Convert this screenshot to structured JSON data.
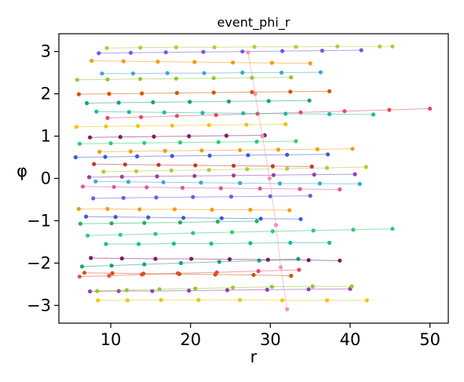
{
  "chart_data": {
    "type": "line",
    "title": "event_phi_r",
    "xlabel": "r",
    "ylabel": "φ",
    "xlim": [
      3.5,
      52.3
    ],
    "ylim": [
      -3.42,
      3.42
    ],
    "xticks": [
      10,
      20,
      30,
      40,
      50
    ],
    "yticks": [
      -3,
      -2,
      -1,
      0,
      1,
      2,
      3
    ],
    "xtick_labels": [
      "10",
      "20",
      "30",
      "40",
      "50"
    ],
    "ytick_labels": [
      "−3",
      "−2",
      "−1",
      "0",
      "1",
      "2",
      "3"
    ],
    "grid": false,
    "legend": "none",
    "palette": [
      "#e84a5f",
      "#f39c12",
      "#f1c40f",
      "#9ac43a",
      "#2ecc71",
      "#16a085",
      "#1abc9c",
      "#3ba7d8",
      "#3b5bdb",
      "#6c5ce7",
      "#8e44ad",
      "#e056a0",
      "#d35400",
      "#7f1d5f",
      "#27ae60",
      "#c0392b",
      "#b8c93b",
      "#f78fb3"
    ],
    "series": [
      {
        "color": "#f1c40f",
        "x": [
          8.4,
          12.1,
          16.3,
          21.0,
          26.2,
          31.5,
          37.1,
          42.1
        ],
        "y": [
          -2.88,
          -2.88,
          -2.87,
          -2.87,
          -2.87,
          -2.88,
          -2.88,
          -2.88
        ]
      },
      {
        "color": "#8e44ad",
        "x": [
          7.4,
          11.0,
          15.2,
          19.8,
          24.6,
          29.6,
          34.8,
          40.0
        ],
        "y": [
          -2.67,
          -2.66,
          -2.66,
          -2.65,
          -2.64,
          -2.63,
          -2.62,
          -2.61
        ]
      },
      {
        "color": "#9ac43a",
        "x": [
          8.3,
          12.0,
          16.1,
          20.6,
          25.3,
          30.2,
          35.3,
          40.2
        ],
        "y": [
          -2.66,
          -2.64,
          -2.62,
          -2.6,
          -2.58,
          -2.56,
          -2.55,
          -2.55
        ]
      },
      {
        "color": "#e84a5f",
        "x": [
          6.1,
          9.8,
          13.9,
          18.4,
          23.3,
          28.5,
          33.6
        ],
        "y": [
          -2.32,
          -2.3,
          -2.27,
          -2.24,
          -2.22,
          -2.19,
          -2.16
        ]
      },
      {
        "color": "#d35400",
        "x": [
          6.7,
          10.2,
          14.1,
          18.6,
          23.1,
          27.9,
          32.6
        ],
        "y": [
          -2.23,
          -2.24,
          -2.25,
          -2.26,
          -2.27,
          -2.28,
          -2.3
        ]
      },
      {
        "color": "#16a085",
        "x": [
          6.4,
          10.1,
          14.2,
          18.8,
          23.6,
          28.6,
          33.5
        ],
        "y": [
          -2.08,
          -2.06,
          -2.03,
          -2.0,
          -1.97,
          -1.94,
          -1.9
        ]
      },
      {
        "color": "#7f1d5f",
        "x": [
          7.5,
          11.4,
          15.6,
          20.1,
          24.9,
          29.7,
          34.8,
          38.7
        ],
        "y": [
          -1.88,
          -1.89,
          -1.9,
          -1.9,
          -1.91,
          -1.92,
          -1.93,
          -1.94
        ]
      },
      {
        "color": "#1abc9c",
        "x": [
          9.4,
          13.5,
          17.9,
          22.6,
          27.5,
          32.5,
          37.4
        ],
        "y": [
          -1.55,
          -1.55,
          -1.54,
          -1.54,
          -1.53,
          -1.52,
          -1.52
        ]
      },
      {
        "color": "#2ecc71",
        "x": [
          7.1,
          11.2,
          15.6,
          20.3,
          25.2,
          30.3,
          35.4,
          40.4,
          45.3
        ],
        "y": [
          -1.35,
          -1.33,
          -1.31,
          -1.29,
          -1.27,
          -1.25,
          -1.23,
          -1.21,
          -1.19
        ]
      },
      {
        "color": "#27ae60",
        "x": [
          6.2,
          10.1,
          14.2,
          18.7,
          23.4,
          28.3
        ],
        "y": [
          -1.07,
          -1.06,
          -1.05,
          -1.04,
          -1.02,
          -1.01
        ]
      },
      {
        "color": "#3b5bdb",
        "x": [
          6.9,
          10.6,
          14.7,
          19.1,
          23.9,
          28.8,
          33.8
        ],
        "y": [
          -0.9,
          -0.91,
          -0.92,
          -0.93,
          -0.94,
          -0.95,
          -0.96
        ]
      },
      {
        "color": "#f39c12",
        "x": [
          6.0,
          9.6,
          13.6,
          18.0,
          22.7,
          27.5,
          32.4
        ],
        "y": [
          -0.72,
          -0.72,
          -0.73,
          -0.73,
          -0.74,
          -0.74,
          -0.75
        ]
      },
      {
        "color": "#6c5ce7",
        "x": [
          7.8,
          11.6,
          15.7,
          20.3,
          25.1,
          30.0,
          35.0
        ],
        "y": [
          -0.47,
          -0.46,
          -0.45,
          -0.44,
          -0.43,
          -0.42,
          -0.41
        ]
      },
      {
        "color": "#e056a0",
        "x": [
          6.5,
          10.4,
          14.5,
          19.0,
          23.8,
          28.7,
          33.7,
          38.7
        ],
        "y": [
          -0.19,
          -0.2,
          -0.21,
          -0.22,
          -0.23,
          -0.24,
          -0.25,
          -0.26
        ]
      },
      {
        "color": "#3ba7d8",
        "x": [
          8.1,
          12.2,
          16.6,
          21.3,
          26.2,
          31.2,
          36.2,
          41.2
        ],
        "y": [
          -0.07,
          -0.08,
          -0.09,
          -0.1,
          -0.11,
          -0.12,
          -0.12,
          -0.13
        ]
      },
      {
        "color": "#8e44ad",
        "x": [
          7.3,
          11.4,
          15.8,
          20.5,
          25.4,
          30.4,
          35.5,
          40.6
        ],
        "y": [
          0.03,
          0.04,
          0.05,
          0.06,
          0.07,
          0.08,
          0.09,
          0.1
        ]
      },
      {
        "color": "#b8c93b",
        "x": [
          9.1,
          13.2,
          17.6,
          22.3,
          27.1,
          32.1,
          37.1,
          42.0
        ],
        "y": [
          0.16,
          0.17,
          0.19,
          0.2,
          0.22,
          0.23,
          0.25,
          0.27
        ]
      },
      {
        "color": "#c0392b",
        "x": [
          7.9,
          11.8,
          16.0,
          20.6,
          25.4,
          30.3,
          35.2
        ],
        "y": [
          0.34,
          0.33,
          0.32,
          0.31,
          0.3,
          0.29,
          0.28
        ]
      },
      {
        "color": "#3b5bdb",
        "x": [
          5.6,
          9.3,
          13.3,
          17.7,
          22.4,
          27.2,
          32.1,
          37.2
        ],
        "y": [
          0.5,
          0.51,
          0.52,
          0.53,
          0.54,
          0.55,
          0.56,
          0.57
        ]
      },
      {
        "color": "#f39c12",
        "x": [
          8.6,
          12.5,
          16.8,
          21.4,
          26.2,
          31.0,
          35.9,
          40.3
        ],
        "y": [
          0.63,
          0.64,
          0.65,
          0.66,
          0.67,
          0.68,
          0.69,
          0.7
        ]
      },
      {
        "color": "#2ecc71",
        "x": [
          6.1,
          10.0,
          14.2,
          18.7,
          23.5,
          28.3,
          33.2
        ],
        "y": [
          0.82,
          0.83,
          0.84,
          0.85,
          0.86,
          0.87,
          0.88
        ]
      },
      {
        "color": "#7f1d5f",
        "x": [
          7.4,
          11.2,
          15.4,
          19.8,
          24.5,
          29.3
        ],
        "y": [
          0.97,
          0.98,
          0.99,
          1.0,
          1.01,
          1.02
        ]
      },
      {
        "color": "#f1c40f",
        "x": [
          5.7,
          9.4,
          13.4,
          17.7,
          22.3,
          27.0,
          31.9
        ],
        "y": [
          1.22,
          1.23,
          1.24,
          1.25,
          1.26,
          1.27,
          1.28
        ]
      },
      {
        "color": "#e84a5f",
        "x": [
          9.6,
          13.8,
          18.3,
          23.2,
          28.4,
          33.8,
          39.3,
          44.9,
          50.0
        ],
        "y": [
          1.43,
          1.45,
          1.48,
          1.5,
          1.53,
          1.56,
          1.59,
          1.62,
          1.65
        ]
      },
      {
        "color": "#1abc9c",
        "x": [
          8.2,
          12.3,
          16.7,
          21.5,
          26.6,
          31.9,
          37.4,
          42.9
        ],
        "y": [
          1.58,
          1.57,
          1.56,
          1.55,
          1.54,
          1.53,
          1.52,
          1.51
        ]
      },
      {
        "color": "#16a085",
        "x": [
          7.0,
          11.0,
          15.3,
          19.9,
          24.8,
          29.8,
          34.9
        ],
        "y": [
          1.78,
          1.79,
          1.8,
          1.81,
          1.82,
          1.83,
          1.84
        ]
      },
      {
        "color": "#d35400",
        "x": [
          6.0,
          9.8,
          13.9,
          18.3,
          22.9,
          27.7,
          32.5,
          37.4
        ],
        "y": [
          1.99,
          2.0,
          2.01,
          2.02,
          2.03,
          2.04,
          2.05,
          2.06
        ]
      },
      {
        "color": "#9ac43a",
        "x": [
          5.8,
          9.6,
          13.7,
          18.2,
          22.9,
          27.7,
          32.6
        ],
        "y": [
          2.33,
          2.34,
          2.35,
          2.36,
          2.37,
          2.38,
          2.39
        ]
      },
      {
        "color": "#3ba7d8",
        "x": [
          8.9,
          12.8,
          17.1,
          21.7,
          26.5,
          31.4,
          36.3
        ],
        "y": [
          2.48,
          2.48,
          2.49,
          2.49,
          2.5,
          2.5,
          2.51
        ]
      },
      {
        "color": "#f39c12",
        "x": [
          7.6,
          11.6,
          15.9,
          20.5,
          25.3,
          30.2,
          35.0
        ],
        "y": [
          2.78,
          2.77,
          2.76,
          2.75,
          2.74,
          2.73,
          2.72
        ]
      },
      {
        "color": "#6c5ce7",
        "x": [
          8.5,
          12.5,
          16.9,
          21.6,
          26.5,
          31.5,
          36.5,
          41.4
        ],
        "y": [
          2.96,
          2.97,
          2.98,
          2.99,
          3.0,
          3.01,
          3.02,
          3.03
        ]
      },
      {
        "color": "#b8c93b",
        "x": [
          9.5,
          13.7,
          18.2,
          23.0,
          28.0,
          33.2,
          38.4,
          43.7,
          45.3
        ],
        "y": [
          3.08,
          3.09,
          3.1,
          3.1,
          3.11,
          3.11,
          3.12,
          3.12,
          3.12
        ]
      },
      {
        "color": "#f78fb3",
        "x": [
          27.2,
          28.1,
          29.0,
          29.9,
          30.7,
          31.3,
          32.1
        ],
        "y": [
          2.98,
          2.0,
          1.0,
          0.0,
          -1.1,
          -2.1,
          -3.09
        ]
      }
    ]
  }
}
